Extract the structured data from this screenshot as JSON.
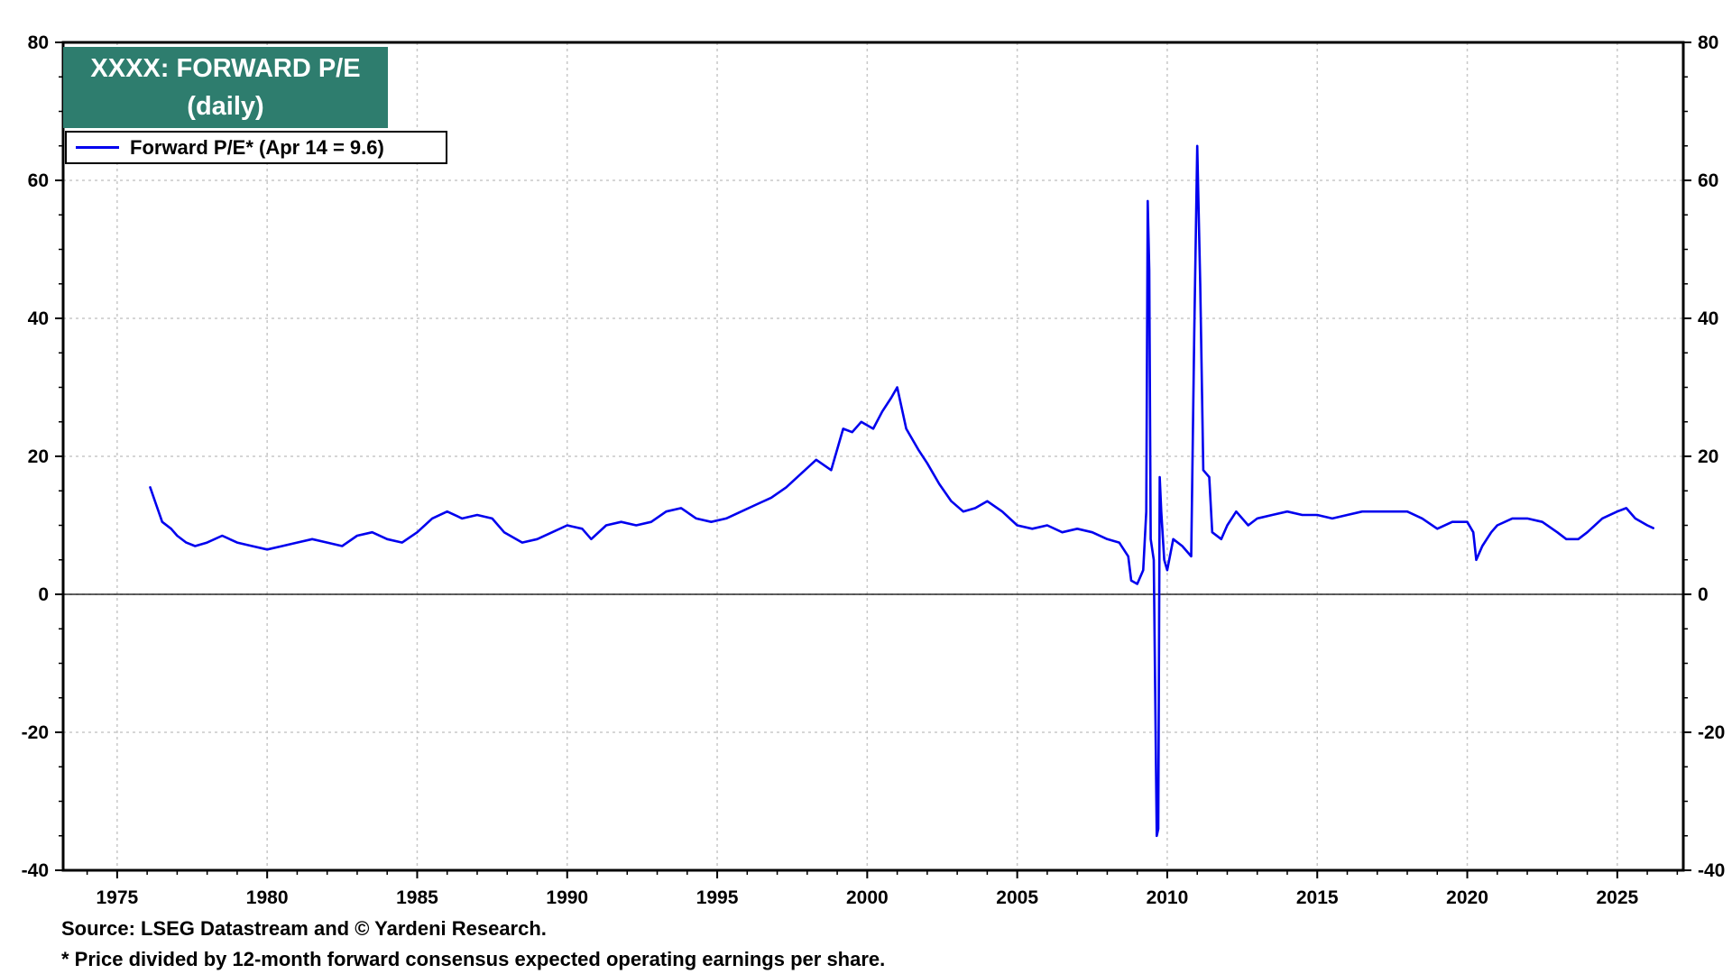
{
  "title_line1": "XXXX: FORWARD P/E",
  "title_line2": "(daily)",
  "legend_label": "Forward P/E* (Apr 14 = 9.6)",
  "source_note": "Source: LSEG Datastream and © Yardeni Research.",
  "footnote": "* Price divided by 12-month forward consensus expected operating earnings per share.",
  "colors": {
    "series": "#0000ee",
    "title_bg": "#2e7d6e",
    "grid": "#c8c8c8"
  },
  "chart_data": {
    "type": "line",
    "title": "XXXX: FORWARD P/E",
    "subtitle": "(daily)",
    "xlim": [
      1973.2,
      2027.2
    ],
    "ylim": [
      -40,
      80
    ],
    "x_ticks": [
      1975,
      1980,
      1985,
      1990,
      1995,
      2000,
      2005,
      2010,
      2015,
      2020,
      2025
    ],
    "y_ticks": [
      -40,
      -20,
      0,
      20,
      40,
      60,
      80
    ],
    "grid": true,
    "legend_position": "top-left",
    "dual_y_axis": true,
    "series": [
      {
        "name": "Forward P/E* (Apr 14 = 9.6)",
        "color": "#0000ee",
        "points": [
          [
            1976.1,
            15.5
          ],
          [
            1976.3,
            13.0
          ],
          [
            1976.5,
            10.5
          ],
          [
            1976.8,
            9.5
          ],
          [
            1977.0,
            8.5
          ],
          [
            1977.3,
            7.5
          ],
          [
            1977.6,
            7.0
          ],
          [
            1978.0,
            7.5
          ],
          [
            1978.5,
            8.5
          ],
          [
            1979.0,
            7.5
          ],
          [
            1979.5,
            7.0
          ],
          [
            1980.0,
            6.5
          ],
          [
            1980.5,
            7.0
          ],
          [
            1981.0,
            7.5
          ],
          [
            1981.5,
            8.0
          ],
          [
            1982.0,
            7.5
          ],
          [
            1982.5,
            7.0
          ],
          [
            1983.0,
            8.5
          ],
          [
            1983.5,
            9.0
          ],
          [
            1984.0,
            8.0
          ],
          [
            1984.5,
            7.5
          ],
          [
            1985.0,
            9.0
          ],
          [
            1985.5,
            11.0
          ],
          [
            1986.0,
            12.0
          ],
          [
            1986.5,
            11.0
          ],
          [
            1987.0,
            11.5
          ],
          [
            1987.5,
            11.0
          ],
          [
            1987.9,
            9.0
          ],
          [
            1988.5,
            7.5
          ],
          [
            1989.0,
            8.0
          ],
          [
            1989.5,
            9.0
          ],
          [
            1990.0,
            10.0
          ],
          [
            1990.5,
            9.5
          ],
          [
            1990.8,
            8.0
          ],
          [
            1991.3,
            10.0
          ],
          [
            1991.8,
            10.5
          ],
          [
            1992.3,
            10.0
          ],
          [
            1992.8,
            10.5
          ],
          [
            1993.3,
            12.0
          ],
          [
            1993.8,
            12.5
          ],
          [
            1994.3,
            11.0
          ],
          [
            1994.8,
            10.5
          ],
          [
            1995.3,
            11.0
          ],
          [
            1995.8,
            12.0
          ],
          [
            1996.3,
            13.0
          ],
          [
            1996.8,
            14.0
          ],
          [
            1997.3,
            15.5
          ],
          [
            1997.8,
            17.5
          ],
          [
            1998.3,
            19.5
          ],
          [
            1998.8,
            18.0
          ],
          [
            1999.2,
            24.0
          ],
          [
            1999.5,
            23.5
          ],
          [
            1999.8,
            25.0
          ],
          [
            2000.2,
            24.0
          ],
          [
            2000.5,
            26.5
          ],
          [
            2000.8,
            28.5
          ],
          [
            2001.0,
            30.0
          ],
          [
            2001.3,
            24.0
          ],
          [
            2001.7,
            21.0
          ],
          [
            2002.0,
            19.0
          ],
          [
            2002.4,
            16.0
          ],
          [
            2002.8,
            13.5
          ],
          [
            2003.2,
            12.0
          ],
          [
            2003.6,
            12.5
          ],
          [
            2004.0,
            13.5
          ],
          [
            2004.5,
            12.0
          ],
          [
            2005.0,
            10.0
          ],
          [
            2005.5,
            9.5
          ],
          [
            2006.0,
            10.0
          ],
          [
            2006.5,
            9.0
          ],
          [
            2007.0,
            9.5
          ],
          [
            2007.5,
            9.0
          ],
          [
            2008.0,
            8.0
          ],
          [
            2008.4,
            7.5
          ],
          [
            2008.7,
            5.5
          ],
          [
            2008.8,
            2.0
          ],
          [
            2009.0,
            1.5
          ],
          [
            2009.2,
            3.5
          ],
          [
            2009.3,
            12.0
          ],
          [
            2009.35,
            57.0
          ],
          [
            2009.4,
            47.0
          ],
          [
            2009.45,
            8.0
          ],
          [
            2009.55,
            5.0
          ],
          [
            2009.65,
            -35.0
          ],
          [
            2009.7,
            -34.0
          ],
          [
            2009.75,
            17.0
          ],
          [
            2009.8,
            12.0
          ],
          [
            2009.9,
            5.0
          ],
          [
            2010.0,
            3.5
          ],
          [
            2010.2,
            8.0
          ],
          [
            2010.5,
            7.0
          ],
          [
            2010.8,
            5.5
          ],
          [
            2010.9,
            38.0
          ],
          [
            2011.0,
            65.0
          ],
          [
            2011.1,
            45.0
          ],
          [
            2011.2,
            18.0
          ],
          [
            2011.4,
            17.0
          ],
          [
            2011.5,
            9.0
          ],
          [
            2011.8,
            8.0
          ],
          [
            2012.0,
            10.0
          ],
          [
            2012.3,
            12.0
          ],
          [
            2012.7,
            10.0
          ],
          [
            2013.0,
            11.0
          ],
          [
            2013.5,
            11.5
          ],
          [
            2014.0,
            12.0
          ],
          [
            2014.5,
            11.5
          ],
          [
            2015.0,
            11.5
          ],
          [
            2015.5,
            11.0
          ],
          [
            2016.0,
            11.5
          ],
          [
            2016.5,
            12.0
          ],
          [
            2017.0,
            12.0
          ],
          [
            2017.5,
            12.0
          ],
          [
            2018.0,
            12.0
          ],
          [
            2018.5,
            11.0
          ],
          [
            2019.0,
            9.5
          ],
          [
            2019.5,
            10.5
          ],
          [
            2020.0,
            10.5
          ],
          [
            2020.2,
            9.0
          ],
          [
            2020.3,
            5.0
          ],
          [
            2020.5,
            7.0
          ],
          [
            2020.8,
            9.0
          ],
          [
            2021.0,
            10.0
          ],
          [
            2021.5,
            11.0
          ],
          [
            2022.0,
            11.0
          ],
          [
            2022.5,
            10.5
          ],
          [
            2023.0,
            9.0
          ],
          [
            2023.3,
            8.0
          ],
          [
            2023.7,
            8.0
          ],
          [
            2024.0,
            9.0
          ],
          [
            2024.5,
            11.0
          ],
          [
            2025.0,
            12.0
          ],
          [
            2025.3,
            12.5
          ],
          [
            2025.6,
            11.0
          ],
          [
            2026.0,
            10.0
          ],
          [
            2026.2,
            9.6
          ]
        ]
      }
    ]
  }
}
